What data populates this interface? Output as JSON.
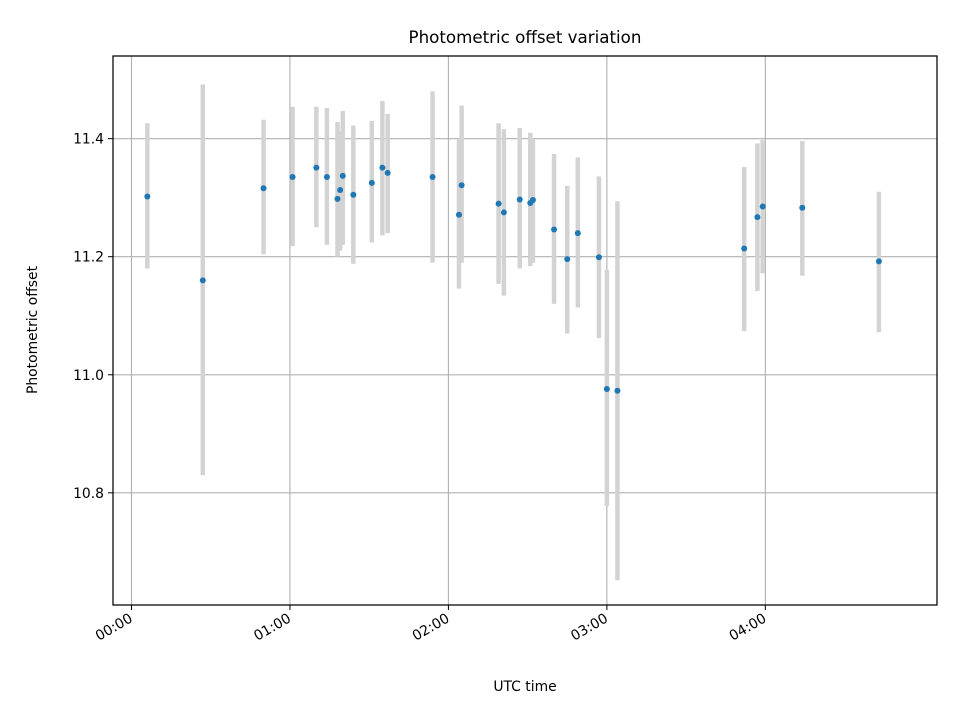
{
  "chart_data": {
    "type": "scatter",
    "title": "Photometric offset variation",
    "xlabel": "UTC time",
    "ylabel": "Photometric offset",
    "x_ticks": [
      "00:00",
      "01:00",
      "02:00",
      "03:00",
      "04:00"
    ],
    "y_ticks": [
      "10.8",
      "11.0",
      "11.2",
      "11.4"
    ],
    "y_tick_values": [
      10.8,
      11.0,
      11.2,
      11.4
    ],
    "xlim": [
      "-00:07",
      "05:05"
    ],
    "ylim": [
      10.61,
      11.54
    ],
    "grid": true,
    "marker_color": "#1f77b4",
    "errorbar_color": "#d3d3d3",
    "points": [
      {
        "x": "00:06",
        "y": 11.302,
        "err_low": 11.18,
        "err_high": 11.426
      },
      {
        "x": "00:27",
        "y": 11.16,
        "err_low": 10.83,
        "err_high": 11.492
      },
      {
        "x": "00:50",
        "y": 11.316,
        "err_low": 11.204,
        "err_high": 11.432
      },
      {
        "x": "01:01",
        "y": 11.335,
        "err_low": 11.218,
        "err_high": 11.454
      },
      {
        "x": "01:10",
        "y": 11.351,
        "err_low": 11.25,
        "err_high": 11.454
      },
      {
        "x": "01:14",
        "y": 11.335,
        "err_low": 11.22,
        "err_high": 11.452
      },
      {
        "x": "01:18",
        "y": 11.298,
        "err_low": 11.2,
        "err_high": 11.428
      },
      {
        "x": "01:19",
        "y": 11.313,
        "err_low": 11.21,
        "err_high": 11.412
      },
      {
        "x": "01:20",
        "y": 11.337,
        "err_low": 11.22,
        "err_high": 11.447
      },
      {
        "x": "01:24",
        "y": 11.305,
        "err_low": 11.188,
        "err_high": 11.422
      },
      {
        "x": "01:31",
        "y": 11.325,
        "err_low": 11.224,
        "err_high": 11.43
      },
      {
        "x": "01:35",
        "y": 11.351,
        "err_low": 11.236,
        "err_high": 11.464
      },
      {
        "x": "01:37",
        "y": 11.342,
        "err_low": 11.24,
        "err_high": 11.442
      },
      {
        "x": "01:54",
        "y": 11.335,
        "err_low": 11.19,
        "err_high": 11.48
      },
      {
        "x": "02:04",
        "y": 11.271,
        "err_low": 11.146,
        "err_high": 11.4
      },
      {
        "x": "02:05",
        "y": 11.321,
        "err_low": 11.19,
        "err_high": 11.456
      },
      {
        "x": "02:19",
        "y": 11.29,
        "err_low": 11.154,
        "err_high": 11.426
      },
      {
        "x": "02:21",
        "y": 11.275,
        "err_low": 11.134,
        "err_high": 11.416
      },
      {
        "x": "02:27",
        "y": 11.297,
        "err_low": 11.18,
        "err_high": 11.418
      },
      {
        "x": "02:31",
        "y": 11.291,
        "err_low": 11.184,
        "err_high": 11.41
      },
      {
        "x": "02:32",
        "y": 11.296,
        "err_low": 11.19,
        "err_high": 11.4
      },
      {
        "x": "02:40",
        "y": 11.246,
        "err_low": 11.12,
        "err_high": 11.374
      },
      {
        "x": "02:45",
        "y": 11.196,
        "err_low": 11.07,
        "err_high": 11.32
      },
      {
        "x": "02:49",
        "y": 11.24,
        "err_low": 11.114,
        "err_high": 11.368
      },
      {
        "x": "02:57",
        "y": 11.199,
        "err_low": 11.062,
        "err_high": 11.336
      },
      {
        "x": "03:00",
        "y": 10.976,
        "err_low": 10.778,
        "err_high": 11.178
      },
      {
        "x": "03:04",
        "y": 10.973,
        "err_low": 10.652,
        "err_high": 11.294
      },
      {
        "x": "03:52",
        "y": 11.214,
        "err_low": 11.074,
        "err_high": 11.352
      },
      {
        "x": "03:57",
        "y": 11.267,
        "err_low": 11.142,
        "err_high": 11.392
      },
      {
        "x": "03:59",
        "y": 11.285,
        "err_low": 11.172,
        "err_high": 11.398
      },
      {
        "x": "04:14",
        "y": 11.283,
        "err_low": 11.168,
        "err_high": 11.396
      },
      {
        "x": "04:43",
        "y": 11.192,
        "err_low": 11.072,
        "err_high": 11.31
      }
    ]
  }
}
